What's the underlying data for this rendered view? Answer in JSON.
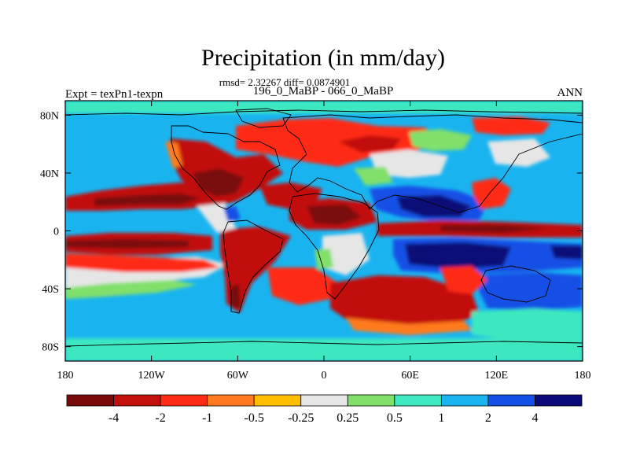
{
  "chart_data": {
    "type": "heatmap",
    "title": "Precipitation (in mm/day)",
    "stats_line": "rmsd= 2.32267 diff= 0.0874901",
    "subtitle": "196_0_MaBP - 066_0_MaBP",
    "left_label": "Expt = texPn1-texpn",
    "right_label": "ANN",
    "x_ticks": [
      "180",
      "120W",
      "60W",
      "0",
      "60E",
      "120E",
      "180"
    ],
    "y_ticks": [
      "80N",
      "40N",
      "0",
      "40S",
      "80S"
    ],
    "xlim": [
      -180,
      180
    ],
    "ylim": [
      -90,
      90
    ],
    "colorbar": {
      "labels": [
        "-4",
        "-2",
        "-1",
        "-0.5",
        "-0.25",
        "0.25",
        "0.5",
        "1",
        "2",
        "4"
      ],
      "colors": [
        "#7a0a0a",
        "#c2100c",
        "#ff2a14",
        "#ff7a1e",
        "#ffbf00",
        "#e6e6e6",
        "#80e06a",
        "#3ee8c0",
        "#19b4f0",
        "#1450e6",
        "#0a0a78"
      ]
    },
    "background_level_color": "#19b4f0"
  }
}
